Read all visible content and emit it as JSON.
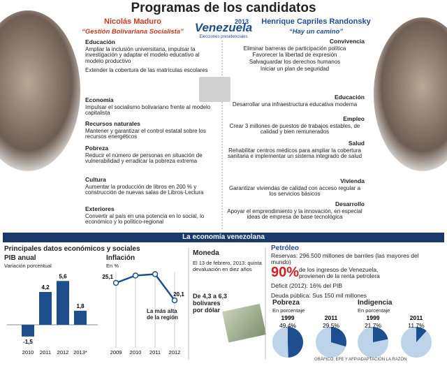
{
  "title": "Programas de los candidatos",
  "logo": {
    "name": "Venezuela",
    "year": "2013",
    "caption": "Elecciones presidenciales"
  },
  "left": {
    "name": "Nicolás Maduro",
    "slogan": "“Gestión Bolivariana Socialista”",
    "sections": [
      {
        "heading": "Educación",
        "items": [
          "Ampliar la inclusión universitaria, impulsar la investigación y adaptar el modelo educativo al modelo productivo",
          "Extender la cobertura de las matrículas escolares"
        ]
      },
      {
        "heading": "Economía",
        "items": [
          "Impulsar el socialismo bolivariano frente al modelo capitalista"
        ]
      },
      {
        "heading": "Recursos naturales",
        "items": [
          "Mantener y garantizar el control estatal sobre los recursos energéticos"
        ]
      },
      {
        "heading": "Pobreza",
        "items": [
          "Reducir el número de personas en situación de vulnerabilidad y erradicar la pobreza extrema"
        ]
      },
      {
        "heading": "Cultura",
        "items": [
          "Aumentar la producción de libros en 200 % y construcción de nuevas salas de Libros-Lectura"
        ]
      },
      {
        "heading": "Exteriores",
        "items": [
          "Convertir al país en una potencia en lo social, lo económico y lo político-regional"
        ]
      }
    ]
  },
  "right": {
    "name": "Henrique Capriles Randonsky",
    "slogan": "“Hay un camino”",
    "sections": [
      {
        "heading": "Convivencia",
        "items": [
          "Eliminar barreras de participación política",
          "Favorecer la libertad de expresión",
          "Salvaguardar los derechos humanos",
          "Iniciar un plan de seguridad"
        ]
      },
      {
        "heading": "Educación",
        "items": [
          "Desarrollar una infraestructura educativa moderna"
        ]
      },
      {
        "heading": "Empleo",
        "items": [
          "Crear 3 millones de puestos de trabajos estables, de calidad y bien remunerados"
        ]
      },
      {
        "heading": "Salud",
        "items": [
          "Rehabilitar centros médicos para ampliar la cobertura sanitaria e implementar un sistema integrado de salud"
        ]
      },
      {
        "heading": "Vivienda",
        "items": [
          "Garantizar viviendas de calidad con acceso regular a los servicios básicos"
        ]
      },
      {
        "heading": "Desarrollo",
        "items": [
          "Apoyar el emprendimiento y la innovación, en especial ideas de empresa de base tecnológica"
        ]
      }
    ]
  },
  "economy": {
    "banner": "La economía venezolana",
    "subtitle": "Principales datos económicos y sociales",
    "pib": {
      "type": "bar",
      "title": "PIB anual",
      "subtitle": "Variación porcentual",
      "categories": [
        "2010",
        "2011",
        "2012",
        "2013*"
      ],
      "values": [
        -1.5,
        4.2,
        5.6,
        1.8
      ],
      "value_labels": [
        "-1,5",
        "4,2",
        "5,6",
        "1,8"
      ],
      "color": "#1d4f8f"
    },
    "inflation": {
      "type": "line",
      "title": "Inflación",
      "subtitle": "En %",
      "categories": [
        "2009",
        "2010",
        "2011",
        "2012"
      ],
      "values": [
        25.1,
        27.2,
        27.6,
        20.1
      ],
      "value_labels": [
        "25,1",
        null,
        null,
        "20,1"
      ],
      "annotation": "La más alta de la región",
      "color": "#1d4f8f"
    },
    "currency": {
      "title": "Moneda",
      "note": "El 13 de febrero, 2013: quinta devaluación en diez años",
      "change": "De 4,3 a 6,3 bolívares por dólar"
    },
    "oil": {
      "title": "Petróleo",
      "reserves": "Reservas: 296.500 millones de barriles (las mayores del mundo)",
      "share": "90%",
      "share_text": "de los ingresos de Venezuela, provienen de la renta petrolera",
      "deficit": "Déficit (2012): 16% del PIB",
      "debt": "Deuda pública: Sus 150 mil millones"
    },
    "poverty": {
      "type": "pie",
      "title": "Pobreza",
      "subtitle": "En porcentaje",
      "categories": [
        "1999",
        "2011"
      ],
      "values": [
        49.4,
        29.5
      ],
      "value_labels": [
        "49,4%",
        "29,5%"
      ],
      "color": "#1d4f8f"
    },
    "indigence": {
      "type": "pie",
      "title": "Indigencia",
      "subtitle": "En porcentaje",
      "categories": [
        "1999",
        "2011"
      ],
      "values": [
        21.7,
        11.7
      ],
      "value_labels": [
        "21,7%",
        "11,7%"
      ],
      "color": "#1d4f8f"
    }
  },
  "source": "GRÁFICO: EFE Y AFP/ADAPTACIÓN LA RAZÓN"
}
